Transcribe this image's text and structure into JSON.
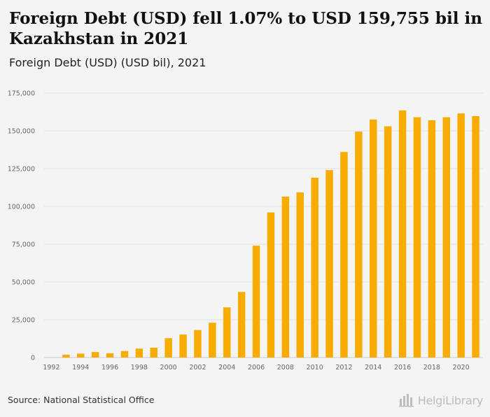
{
  "header": {
    "title": "Foreign Debt (USD) fell 1.07% to USD 159,755 bil in Kazakhstan in 2021",
    "subtitle": "Foreign Debt (USD) (USD bil), 2021"
  },
  "footer": {
    "source": "Source: National Statistical Office",
    "logo_text": "HelgiLibrary",
    "logo_icon": "bar-chart-logo-icon"
  },
  "colors": {
    "bar": "#f8ab00",
    "background": "#f4f4f4",
    "grid": "#e0e0e0",
    "axis_text": "#666666"
  },
  "chart_data": {
    "type": "bar",
    "title": "",
    "xlabel": "",
    "ylabel": "",
    "ylim": [
      0,
      175000
    ],
    "yticks": [
      0,
      25000,
      50000,
      75000,
      100000,
      125000,
      150000,
      175000
    ],
    "ytick_labels": [
      "0",
      "25,000",
      "50,000",
      "75,000",
      "100,000",
      "125,000",
      "150,000",
      "175,000"
    ],
    "xtick_labels": [
      "1992",
      "1994",
      "1996",
      "1998",
      "2000",
      "2002",
      "2004",
      "2006",
      "2008",
      "2010",
      "2012",
      "2014",
      "2016",
      "2018",
      "2020"
    ],
    "grid": true,
    "legend": "none",
    "categories": [
      "1992",
      "1993",
      "1994",
      "1995",
      "1996",
      "1997",
      "1998",
      "1999",
      "2000",
      "2001",
      "2002",
      "2003",
      "2004",
      "2005",
      "2006",
      "2007",
      "2008",
      "2009",
      "2010",
      "2011",
      "2012",
      "2013",
      "2014",
      "2015",
      "2016",
      "2017",
      "2018",
      "2019",
      "2020",
      "2021"
    ],
    "series": [
      {
        "values": [
          0,
          1900,
          2600,
          3600,
          2800,
          4300,
          5900,
          6500,
          12800,
          15200,
          18200,
          23000,
          33200,
          43400,
          74000,
          96000,
          106500,
          109300,
          119000,
          124000,
          136000,
          149500,
          157500,
          153000,
          163500,
          159000,
          157000,
          159000,
          161500,
          159755
        ]
      }
    ]
  }
}
